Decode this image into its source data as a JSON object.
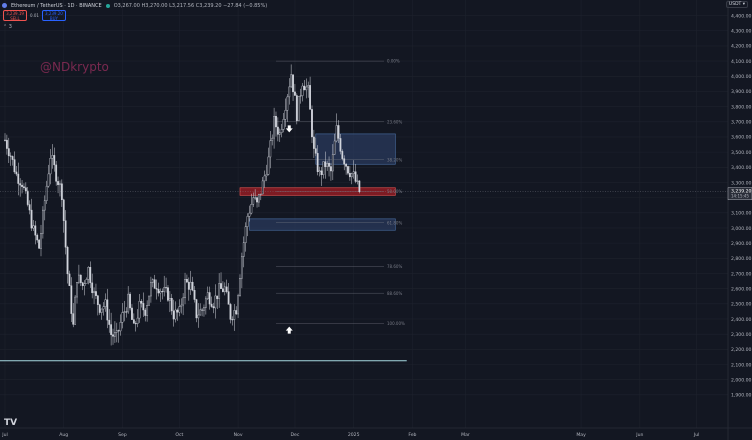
{
  "header": {
    "symbol": "Ethereum / TetherUS · 1D · BINANCE",
    "ohlc": "O3,267.00 H3,270.00 L3,217.56 C3,239.20 −27.84 (−0.85%)",
    "sell_price": "3,239.19",
    "sell_label": "SELL",
    "spread": "0.01",
    "buy_price": "3,239.20",
    "buy_label": "BUY",
    "indicator": "3",
    "currency": "USDT"
  },
  "watermark": "@NDkrypto",
  "logo": "TV",
  "colors": {
    "bg": "#131722",
    "candle": "#d1d4dc",
    "grid": "#1e222d",
    "fib": "#787b86",
    "zone_blue": "#2a3a5c",
    "zone_red": "#8b1c23",
    "support": "#a6d8e0",
    "watermark": "#9c2f5e"
  },
  "chart_data": {
    "type": "candlestick",
    "y_axis": {
      "min": 1800,
      "max": 4500,
      "ticks": [
        "4,400.00",
        "4,300.00",
        "4,200.00",
        "4,100.00",
        "4,000.00",
        "3,900.00",
        "3,800.00",
        "3,700.00",
        "3,600.00",
        "3,500.00",
        "3,400.00",
        "3,300.00",
        "3,200.00",
        "3,100.00",
        "3,000.00",
        "2,900.00",
        "2,800.00",
        "2,700.00",
        "2,600.00",
        "2,500.00",
        "2,400.00",
        "2,300.00",
        "2,200.00",
        "2,100.00",
        "2,000.00",
        "1,900.00"
      ],
      "tick_values": [
        4400,
        4300,
        4200,
        4100,
        4000,
        3900,
        3800,
        3700,
        3600,
        3500,
        3400,
        3300,
        3200,
        3100,
        3000,
        2900,
        2800,
        2700,
        2600,
        2500,
        2400,
        2300,
        2200,
        2100,
        2000,
        1900
      ]
    },
    "x_axis": {
      "labels": [
        "Jul",
        "Aug",
        "Sep",
        "Oct",
        "Nov",
        "Dec",
        "2025",
        "Feb",
        "Mar",
        "May",
        "Jun",
        "Jul"
      ],
      "label_days": [
        0,
        31,
        62,
        92,
        123,
        153,
        184,
        215,
        243,
        304,
        335,
        365
      ]
    },
    "current_price": "3,239.20",
    "countdown": "14:15:45",
    "price_path": [
      [
        0,
        3580
      ],
      [
        3,
        3480
      ],
      [
        6,
        3350
      ],
      [
        9,
        3300
      ],
      [
        12,
        3150
      ],
      [
        15,
        2980
      ],
      [
        18,
        2870
      ],
      [
        21,
        3180
      ],
      [
        24,
        3480
      ],
      [
        27,
        3350
      ],
      [
        30,
        3230
      ],
      [
        33,
        2700
      ],
      [
        36,
        2350
      ],
      [
        38,
        2680
      ],
      [
        41,
        2620
      ],
      [
        44,
        2730
      ],
      [
        47,
        2560
      ],
      [
        50,
        2480
      ],
      [
        53,
        2490
      ],
      [
        56,
        2300
      ],
      [
        59,
        2280
      ],
      [
        62,
        2420
      ],
      [
        65,
        2520
      ],
      [
        68,
        2330
      ],
      [
        71,
        2480
      ],
      [
        74,
        2460
      ],
      [
        77,
        2620
      ],
      [
        80,
        2630
      ],
      [
        83,
        2580
      ],
      [
        86,
        2560
      ],
      [
        89,
        2430
      ],
      [
        92,
        2440
      ],
      [
        95,
        2640
      ],
      [
        98,
        2620
      ],
      [
        101,
        2430
      ],
      [
        104,
        2460
      ],
      [
        107,
        2560
      ],
      [
        110,
        2510
      ],
      [
        113,
        2590
      ],
      [
        116,
        2600
      ],
      [
        119,
        2420
      ],
      [
        122,
        2470
      ],
      [
        125,
        2820
      ],
      [
        128,
        3080
      ],
      [
        131,
        3200
      ],
      [
        133,
        3150
      ],
      [
        136,
        3290
      ],
      [
        139,
        3450
      ],
      [
        142,
        3700
      ],
      [
        145,
        3620
      ],
      [
        148,
        3820
      ],
      [
        151,
        4020
      ],
      [
        154,
        3750
      ],
      [
        157,
        3970
      ],
      [
        160,
        3900
      ],
      [
        163,
        3500
      ],
      [
        166,
        3350
      ],
      [
        169,
        3420
      ],
      [
        172,
        3370
      ],
      [
        175,
        3650
      ],
      [
        178,
        3480
      ],
      [
        181,
        3390
      ],
      [
        184,
        3340
      ],
      [
        187,
        3240
      ]
    ],
    "fib_levels": [
      {
        "label": "0.00%",
        "price": 4100
      },
      {
        "label": "23.60%",
        "price": 3700
      },
      {
        "label": "38.20%",
        "price": 3450
      },
      {
        "label": "50.00%",
        "price": 3240
      },
      {
        "label": "61.80%",
        "price": 3035
      },
      {
        "label": "78.60%",
        "price": 2745
      },
      {
        "label": "88.60%",
        "price": 2570
      },
      {
        "label": "100.00%",
        "price": 2370
      }
    ],
    "zones": [
      {
        "name": "supply-zone",
        "top": 3620,
        "bottom": 3420,
        "from_day": 164,
        "to_day": 206
      },
      {
        "name": "pivot-zone",
        "top": 3265,
        "bottom": 3215,
        "from_day": 124,
        "to_day": 206
      },
      {
        "name": "demand-zone",
        "top": 3060,
        "bottom": 2985,
        "from_day": 129,
        "to_day": 206
      }
    ],
    "support_line": 2125,
    "arrows": [
      {
        "dir": "down",
        "day": 150,
        "price": 3650
      },
      {
        "dir": "up",
        "day": 150,
        "price": 2330
      }
    ]
  }
}
